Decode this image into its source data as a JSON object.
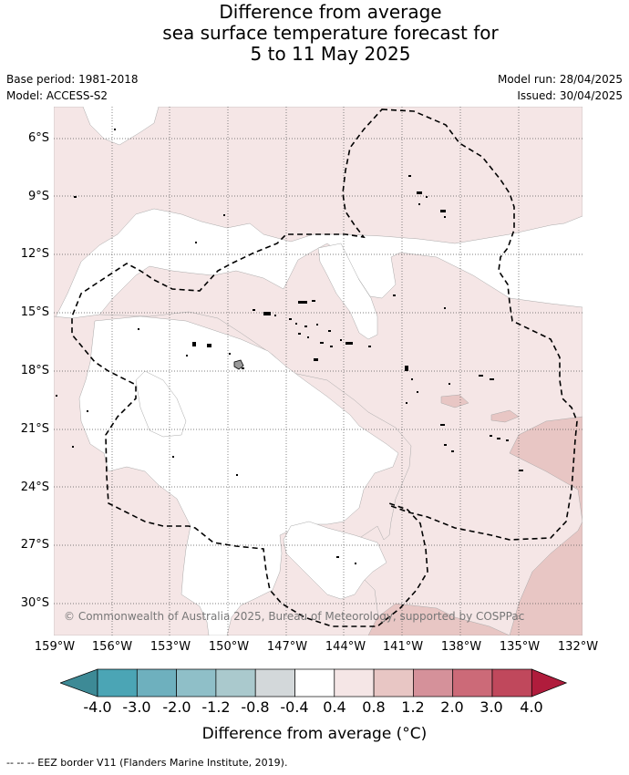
{
  "title": {
    "line1": "Difference from average",
    "line2": "sea surface temperature forecast for",
    "line3": "5 to 11 May 2025"
  },
  "meta": {
    "base_period": "Base period: 1981-2018",
    "model": "Model: ACCESS-S2",
    "model_run": "Model run: 28/04/2025",
    "issued": "Issued: 30/04/2025"
  },
  "map": {
    "lat_labels": [
      "6°S",
      "9°S",
      "12°S",
      "15°S",
      "18°S",
      "21°S",
      "24°S",
      "27°S",
      "30°S"
    ],
    "lon_labels": [
      "159°W",
      "156°W",
      "153°W",
      "150°W",
      "147°W",
      "144°W",
      "141°W",
      "138°W",
      "135°W",
      "132°W"
    ],
    "copyright": "© Commonwealth of Australia 2025, Bureau of Meteorology, supported by COSPPac",
    "colors": {
      "anomaly_0_4_0_8": "#f5e6e6",
      "anomaly_0_8_1_2": "#e8c6c4",
      "land": "#9a9a9a",
      "grid": "#555555"
    }
  },
  "colorbar": {
    "ticks": [
      "-4.0",
      "-3.0",
      "-2.0",
      "-1.2",
      "-0.8",
      "-0.4",
      "0.4",
      "0.8",
      "1.2",
      "2.0",
      "3.0",
      "4.0"
    ],
    "colors": [
      "#3d8a96",
      "#4ba5b5",
      "#6eb0be",
      "#8fbfc8",
      "#aac9cd",
      "#d3d8da",
      "#ffffff",
      "#f5e6e6",
      "#e8c6c4",
      "#d5919a",
      "#cc6a78",
      "#c0485c",
      "#b01c3c"
    ],
    "title": "Difference from average (°C)"
  },
  "footer": {
    "eez_note": "--  --  -- EEZ border V11 (Flanders Marine Institute, 2019)."
  }
}
